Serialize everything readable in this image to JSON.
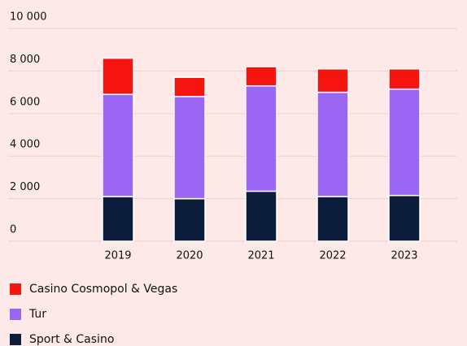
{
  "chart_data": {
    "type": "stacked_bar",
    "categories": [
      "2019",
      "2020",
      "2021",
      "2022",
      "2023"
    ],
    "series": [
      {
        "name": "Sport & Casino",
        "color": "#0b1d3a",
        "values": [
          2100,
          2000,
          2350,
          2100,
          2150
        ]
      },
      {
        "name": "Tur",
        "color": "#9a66f3",
        "values": [
          4800,
          4800,
          4950,
          4900,
          5000
        ]
      },
      {
        "name": "Casino Cosmopol & Vegas",
        "color": "#f5140f",
        "values": [
          1700,
          900,
          900,
          1100,
          950
        ]
      }
    ],
    "ylim": [
      0,
      10000
    ],
    "yticks": [
      0,
      {
        "value": 2000,
        "label": "2 000"
      },
      {
        "value": 4000,
        "label": "4 000"
      },
      {
        "value": 6000,
        "label": "6 000"
      },
      {
        "value": 8000,
        "label": "8 000"
      },
      {
        "value": 10000,
        "label": "10 000"
      }
    ],
    "grid": true
  }
}
